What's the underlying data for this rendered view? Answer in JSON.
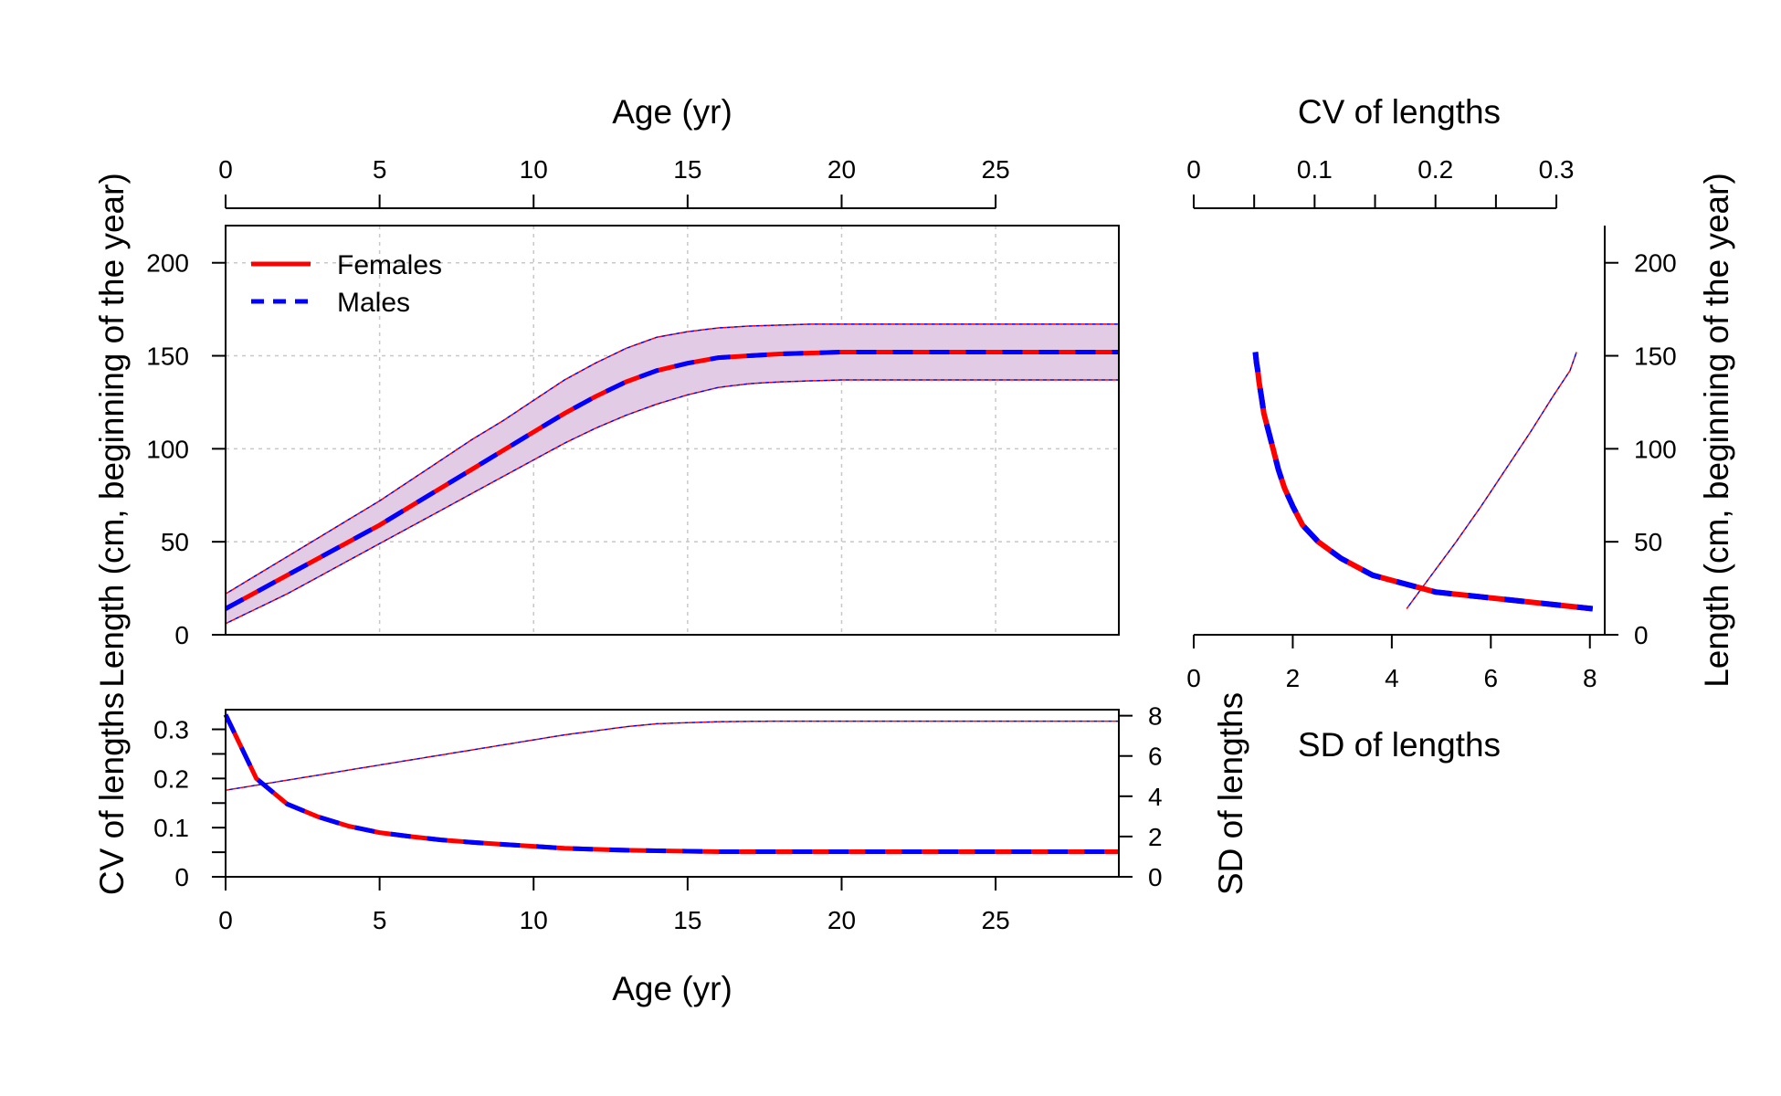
{
  "figure": {
    "background": "#ffffff",
    "band_fill": "#e2cbe4",
    "female_color": "#ff0000",
    "male_color": "#0000ff",
    "grid_color": "#c8c8c8"
  },
  "chart_data": [
    {
      "id": "growth",
      "type": "line",
      "xlabel": "Age (yr)",
      "ylabel": "Length (cm, beginning of the year)",
      "xlim": [
        0,
        29
      ],
      "ylim": [
        0,
        220
      ],
      "x_ticks": [
        0,
        5,
        10,
        15,
        20,
        25
      ],
      "y_ticks": [
        0,
        50,
        100,
        150,
        200
      ],
      "grid": true,
      "legend": {
        "position": "top-left",
        "entries": [
          "Females",
          "Males"
        ]
      },
      "x": [
        0,
        1,
        2,
        3,
        4,
        5,
        6,
        7,
        8,
        9,
        10,
        11,
        12,
        13,
        14,
        15,
        16,
        17,
        18,
        19,
        20,
        21,
        22,
        23,
        24,
        25,
        26,
        27,
        28,
        29
      ],
      "series": [
        {
          "name": "Females",
          "role": "mean",
          "values": [
            14,
            23,
            32,
            41,
            50,
            59,
            69,
            79,
            89,
            99,
            109,
            119,
            128,
            136,
            142,
            146,
            149,
            150,
            151,
            151.5,
            152,
            152,
            152,
            152,
            152,
            152,
            152,
            152,
            152,
            152
          ]
        },
        {
          "name": "Males",
          "role": "mean",
          "values": [
            14,
            23,
            32,
            41,
            50,
            59,
            69,
            79,
            89,
            99,
            109,
            119,
            128,
            136,
            142,
            146,
            149,
            150,
            151,
            151.5,
            152,
            152,
            152,
            152,
            152,
            152,
            152,
            152,
            152,
            152
          ]
        }
      ],
      "interval": {
        "lower": [
          6,
          14,
          22,
          31,
          40,
          49,
          58,
          67,
          76,
          85,
          94,
          103,
          111,
          118,
          124,
          129,
          133,
          135,
          136,
          136.5,
          137,
          137,
          137,
          137,
          137,
          137,
          137,
          137,
          137,
          137
        ],
        "upper": [
          22,
          32,
          42,
          52,
          62,
          72,
          83,
          94,
          105,
          115,
          126,
          137,
          146,
          154,
          160,
          163,
          165,
          166,
          166.5,
          167,
          167,
          167,
          167,
          167,
          167,
          167,
          167,
          167,
          167,
          167
        ]
      }
    },
    {
      "id": "variability-by-age",
      "type": "line",
      "xlabel": "Age (yr)",
      "ylabel": "CV of lengths",
      "y2label": "SD of lengths",
      "xlim": [
        0,
        29
      ],
      "ylim": [
        0,
        0.34
      ],
      "y2lim": [
        0,
        8.3
      ],
      "x_ticks": [
        0,
        5,
        10,
        15,
        20,
        25
      ],
      "y_ticks": [
        0,
        0.1,
        0.2,
        0.3
      ],
      "y_tick_labels": [
        "0",
        "0.1",
        "0.2",
        "0.3"
      ],
      "y_minor_ticks": [
        0.05,
        0.15,
        0.25
      ],
      "y2_ticks": [
        0,
        2,
        4,
        6,
        8
      ],
      "x": [
        0,
        1,
        2,
        3,
        4,
        5,
        6,
        7,
        8,
        9,
        10,
        11,
        12,
        13,
        14,
        15,
        16,
        17,
        18,
        19,
        20,
        21,
        22,
        23,
        24,
        25,
        26,
        27,
        28,
        29
      ],
      "series": [
        {
          "name": "Females",
          "axis": "CV",
          "values": [
            0.33,
            0.2,
            0.148,
            0.122,
            0.103,
            0.09,
            0.082,
            0.075,
            0.07,
            0.066,
            0.062,
            0.058,
            0.056,
            0.054,
            0.053,
            0.052,
            0.051,
            0.051,
            0.051,
            0.051,
            0.051,
            0.051,
            0.051,
            0.051,
            0.051,
            0.051,
            0.051,
            0.051,
            0.051,
            0.051
          ]
        },
        {
          "name": "Males",
          "axis": "CV",
          "values": [
            0.33,
            0.2,
            0.148,
            0.122,
            0.103,
            0.09,
            0.082,
            0.075,
            0.07,
            0.066,
            0.062,
            0.058,
            0.056,
            0.054,
            0.053,
            0.052,
            0.051,
            0.051,
            0.051,
            0.051,
            0.051,
            0.051,
            0.051,
            0.051,
            0.051,
            0.051,
            0.051,
            0.051,
            0.051,
            0.051
          ]
        },
        {
          "name": "Females",
          "axis": "SD",
          "values": [
            4.3,
            4.55,
            4.8,
            5.05,
            5.3,
            5.55,
            5.8,
            6.05,
            6.3,
            6.55,
            6.8,
            7.05,
            7.25,
            7.45,
            7.6,
            7.65,
            7.7,
            7.72,
            7.73,
            7.73,
            7.73,
            7.73,
            7.73,
            7.73,
            7.73,
            7.73,
            7.73,
            7.73,
            7.73,
            7.73
          ]
        },
        {
          "name": "Males",
          "axis": "SD",
          "values": [
            4.3,
            4.55,
            4.8,
            5.05,
            5.3,
            5.55,
            5.8,
            6.05,
            6.3,
            6.55,
            6.8,
            7.05,
            7.25,
            7.45,
            7.6,
            7.65,
            7.7,
            7.72,
            7.73,
            7.73,
            7.73,
            7.73,
            7.73,
            7.73,
            7.73,
            7.73,
            7.73,
            7.73,
            7.73,
            7.73
          ]
        }
      ]
    },
    {
      "id": "variability-vs-length",
      "type": "line",
      "xlabel": "SD of lengths",
      "x2label": "CV of lengths",
      "ylabel": "Length (cm, beginning of the year)",
      "xlim": [
        0,
        8.3
      ],
      "x2lim": [
        0,
        0.34
      ],
      "ylim": [
        0,
        220
      ],
      "x_ticks": [
        0,
        2,
        4,
        6,
        8
      ],
      "x2_ticks": [
        0,
        0.1,
        0.2,
        0.3
      ],
      "x2_tick_labels": [
        "0",
        "0.1",
        "0.2",
        "0.3"
      ],
      "x2_minor_ticks": [
        0.05,
        0.15,
        0.25
      ],
      "y_ticks": [
        0,
        50,
        100,
        150,
        200
      ],
      "series": [
        {
          "name": "Females",
          "axis": "CV",
          "x": [
            0.051,
            0.052,
            0.053,
            0.054,
            0.056,
            0.058,
            0.062,
            0.066,
            0.07,
            0.075,
            0.082,
            0.09,
            0.103,
            0.122,
            0.148,
            0.2,
            0.33
          ],
          "y": [
            152,
            146,
            142,
            136,
            128,
            119,
            109,
            99,
            89,
            79,
            69,
            59,
            50,
            41,
            32,
            23,
            14
          ]
        },
        {
          "name": "Males",
          "axis": "CV",
          "x": [
            0.051,
            0.052,
            0.053,
            0.054,
            0.056,
            0.058,
            0.062,
            0.066,
            0.07,
            0.075,
            0.082,
            0.09,
            0.103,
            0.122,
            0.148,
            0.2,
            0.33
          ],
          "y": [
            152,
            146,
            142,
            136,
            128,
            119,
            109,
            99,
            89,
            79,
            69,
            59,
            50,
            41,
            32,
            23,
            14
          ]
        },
        {
          "name": "Females",
          "axis": "SD",
          "x": [
            4.3,
            4.8,
            5.3,
            5.8,
            6.3,
            6.8,
            7.25,
            7.6,
            7.73
          ],
          "y": [
            14,
            32,
            50,
            69,
            89,
            109,
            128,
            142,
            152
          ]
        },
        {
          "name": "Males",
          "axis": "SD",
          "x": [
            4.3,
            4.8,
            5.3,
            5.8,
            6.3,
            6.8,
            7.25,
            7.6,
            7.73
          ],
          "y": [
            14,
            32,
            50,
            69,
            89,
            109,
            128,
            142,
            152
          ]
        }
      ]
    }
  ]
}
